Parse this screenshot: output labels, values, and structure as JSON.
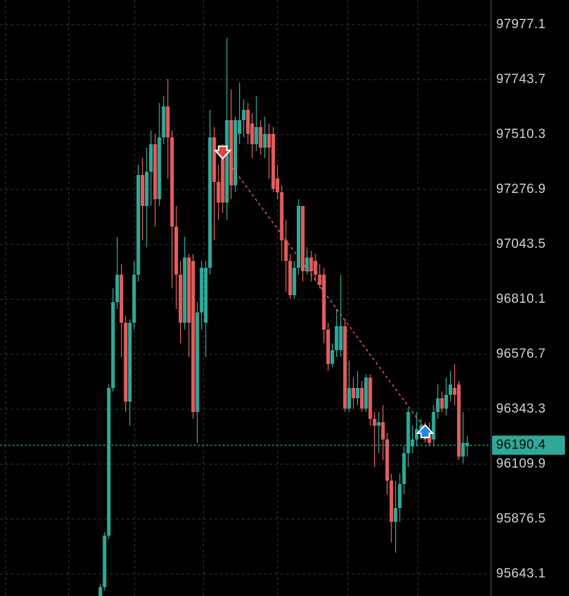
{
  "chart_data": {
    "type": "candlestick",
    "up_color": "#2fa897",
    "down_color": "#e35d5b",
    "ylim": [
      95549.7,
      98082.1
    ],
    "yticks": [
      97977.1,
      97743.7,
      97510.3,
      97276.9,
      97043.5,
      96810.1,
      96576.7,
      96343.3,
      96109.9,
      95876.5,
      95643.1
    ],
    "grid": true,
    "last_price": 96190.4,
    "trade": {
      "open": 97425.7,
      "close": 96258.7
    },
    "open": [
      95549.7,
      95587.6,
      95806.4,
      96433.8,
      96798.4,
      96915.1,
      96710.9,
      96375.4,
      96710.9,
      96915.1,
      97338.2,
      97206.9,
      97352.7,
      97469.4,
      97236.0,
      97498.6,
      97629.9,
      97498.6,
      97119.3,
      96915.1,
      96710.9,
      96988.0,
      96973.4,
      96331.6,
      96754.6,
      96710.9,
      96944.3,
      97498.6,
      97309.0,
      97425.7,
      97221.5,
      97571.5,
      97294.4,
      97513.2,
      97571.5,
      97615.3,
      97557.0,
      97469.4,
      97542.4,
      97454.8,
      97513.2,
      97513.2,
      97323.6,
      97265.2,
      97061.0,
      96973.4,
      96827.6,
      96944.3,
      97206.9,
      96929.7,
      96988.0,
      96973.4,
      96915.1,
      96915.1,
      96681.7,
      96535.9,
      96594.2,
      96594.2,
      96696.3,
      96346.2,
      96433.8,
      96390.0,
      96433.8,
      96346.2,
      96477.5,
      96302.4,
      96273.3,
      96287.9,
      96214.9,
      96039.8,
      95864.8,
      95923.1,
      96025.3,
      96156.6,
      96185.7,
      96214.9,
      96258.7,
      96273.3,
      96244.1,
      96214.9,
      96331.6,
      96390.0,
      96346.2,
      96404.6,
      96433.8,
      96448.3,
      96142.0,
      96185.7
    ],
    "high": [
      95602.2,
      95821.0,
      96448.3,
      96856.7,
      97075.6,
      96958.8,
      96740.1,
      96725.5,
      96973.4,
      97381.9,
      97411.1,
      97454.8,
      97527.8,
      97513.2,
      97644.5,
      97673.7,
      97746.6,
      97527.8,
      97206.9,
      96973.4,
      97075.6,
      97002.6,
      97002.6,
      96798.4,
      96973.4,
      96973.4,
      97615.3,
      97542.4,
      97381.9,
      97469.4,
      97921.6,
      97702.8,
      97586.1,
      97732.0,
      97659.0,
      97644.5,
      97600.7,
      97673.7,
      97571.5,
      97586.1,
      97557.0,
      97542.4,
      97381.9,
      97294.4,
      97148.5,
      97002.6,
      96973.4,
      97236.0,
      97206.9,
      97031.8,
      97017.2,
      97002.6,
      96958.8,
      96944.3,
      96710.9,
      96623.4,
      96769.2,
      96915.1,
      96725.5,
      96550.4,
      96477.5,
      96506.7,
      96462.9,
      96492.1,
      96492.1,
      96331.6,
      96331.6,
      96360.8,
      96244.1,
      96069.0,
      96039.8,
      96069.0,
      96185.7,
      96346.2,
      96273.3,
      96331.6,
      96302.4,
      96287.9,
      96287.9,
      96360.8,
      96448.3,
      96419.2,
      96477.5,
      96506.7,
      96535.9,
      96462.9,
      96331.6,
      96229.5
    ],
    "low": [
      95549.7,
      95573.1,
      95791.9,
      96419.2,
      96769.2,
      96565.0,
      96331.6,
      96273.3,
      96681.7,
      96885.9,
      97061.0,
      97031.8,
      97206.9,
      97119.3,
      97206.9,
      97469.4,
      97323.6,
      96856.7,
      96769.2,
      96623.4,
      96681.7,
      96565.0,
      96302.4,
      96200.3,
      96681.7,
      96565.0,
      96915.1,
      97061.0,
      97148.5,
      97177.7,
      97148.5,
      97236.0,
      97265.2,
      97469.4,
      97498.6,
      97469.4,
      97411.1,
      97440.3,
      97425.7,
      97411.1,
      97323.6,
      97265.2,
      97236.0,
      96973.4,
      96842.2,
      96813.0,
      96813.0,
      96915.1,
      96885.9,
      96915.1,
      96885.9,
      96885.9,
      96856.7,
      96623.4,
      96506.7,
      96521.3,
      96565.0,
      96565.0,
      96331.6,
      96331.6,
      96346.2,
      96360.8,
      96331.6,
      96331.6,
      96273.3,
      96098.2,
      96156.6,
      96127.4,
      95981.5,
      95777.3,
      95733.5,
      95864.8,
      95981.5,
      96098.2,
      96156.6,
      96185.7,
      96214.9,
      96200.3,
      96185.7,
      96185.7,
      96302.4,
      96331.6,
      96317.0,
      96375.4,
      96360.8,
      96127.4,
      96112.8,
      96142.0
    ],
    "close": [
      95587.6,
      95806.4,
      96433.8,
      96798.4,
      96915.1,
      96710.9,
      96375.4,
      96710.9,
      96915.1,
      97338.2,
      97206.9,
      97352.7,
      97469.4,
      97236.0,
      97498.6,
      97629.9,
      97498.6,
      97119.3,
      96915.1,
      96710.9,
      96988.0,
      96710.9,
      96331.6,
      96754.6,
      96944.3,
      96944.3,
      97498.6,
      97309.0,
      97221.5,
      97221.5,
      97571.5,
      97294.4,
      97571.5,
      97571.5,
      97615.3,
      97513.2,
      97469.4,
      97542.4,
      97454.8,
      97513.2,
      97454.8,
      97279.8,
      97265.2,
      97061.0,
      96973.4,
      96827.6,
      96944.3,
      97206.9,
      96929.7,
      96988.0,
      96929.7,
      96915.1,
      96871.3,
      96681.7,
      96535.9,
      96594.2,
      96696.3,
      96696.3,
      96346.2,
      96433.8,
      96390.0,
      96433.8,
      96346.2,
      96477.5,
      96302.4,
      96273.3,
      96287.9,
      96214.9,
      96039.8,
      95864.8,
      95923.1,
      96025.3,
      96156.6,
      96331.6,
      96214.9,
      96258.7,
      96273.3,
      96214.9,
      96200.3,
      96331.6,
      96390.0,
      96346.2,
      96404.6,
      96448.3,
      96404.6,
      96142.0,
      96200.3,
      96200.3
    ]
  }
}
